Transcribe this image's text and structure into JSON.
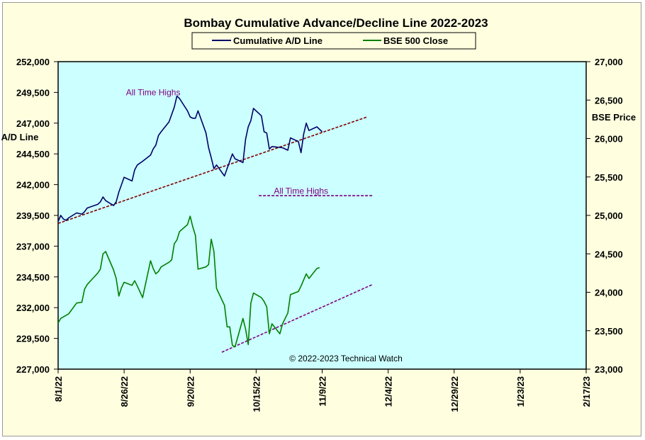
{
  "chart_data": {
    "type": "line",
    "title": "Bombay Cumulative Advance/Decline Line 2022-2023",
    "copyright": "© 2022-2023  Technical Watch",
    "left_axis_label": [
      "A/D Line"
    ],
    "right_axis_label": "BSE Price",
    "annotations": [
      "All Time Highs",
      "All Time Highs"
    ],
    "legend": {
      "placement": "top-center",
      "entries": [
        {
          "name": "Cumulative A/D Line",
          "color": "#000066"
        },
        {
          "name": "BSE 500 Close",
          "color": "#008000"
        }
      ]
    },
    "x_axis": {
      "type": "date",
      "range": [
        "2022-08-01",
        "2023-02-17"
      ],
      "tick_labels": [
        "8/1/22",
        "8/26/22",
        "9/20/22",
        "10/15/22",
        "11/9/22",
        "12/4/22",
        "12/29/22",
        "1/23/23",
        "2/17/23"
      ]
    },
    "y_left": {
      "range": [
        227000,
        252000
      ],
      "tick_labels": [
        "252,000",
        "249,500",
        "247,000",
        "244,500",
        "242,000",
        "239,500",
        "237,000",
        "234,500",
        "232,000",
        "229,500",
        "227,000"
      ]
    },
    "y_right": {
      "range": [
        23000,
        27000
      ],
      "tick_labels": [
        "27,000",
        "26,500",
        "26,000",
        "25,500",
        "25,000",
        "24,500",
        "24,000",
        "23,500",
        "23,000"
      ]
    },
    "grid": false,
    "background_color": "#ccffff",
    "series": [
      {
        "name": "Cumulative A/D Line",
        "axis": "left",
        "color": "#000066",
        "points": [
          [
            "2022-08-01",
            239000
          ],
          [
            "2022-08-02",
            239500
          ],
          [
            "2022-08-03",
            239200
          ],
          [
            "2022-08-04",
            239100
          ],
          [
            "2022-08-05",
            239300
          ],
          [
            "2022-08-08",
            239700
          ],
          [
            "2022-08-10",
            239600
          ],
          [
            "2022-08-11",
            239800
          ],
          [
            "2022-08-12",
            240100
          ],
          [
            "2022-08-16",
            240400
          ],
          [
            "2022-08-17",
            240600
          ],
          [
            "2022-08-18",
            241000
          ],
          [
            "2022-08-19",
            240700
          ],
          [
            "2022-08-22",
            240300
          ],
          [
            "2022-08-23",
            240600
          ],
          [
            "2022-08-24",
            241400
          ],
          [
            "2022-08-25",
            242000
          ],
          [
            "2022-08-26",
            242600
          ],
          [
            "2022-08-29",
            242300
          ],
          [
            "2022-08-30",
            243200
          ],
          [
            "2022-08-31",
            243600
          ],
          [
            "2022-09-02",
            243900
          ],
          [
            "2022-09-05",
            244400
          ],
          [
            "2022-09-06",
            244900
          ],
          [
            "2022-09-07",
            245200
          ],
          [
            "2022-09-08",
            246000
          ],
          [
            "2022-09-09",
            246300
          ],
          [
            "2022-09-12",
            247100
          ],
          [
            "2022-09-13",
            247700
          ],
          [
            "2022-09-14",
            248300
          ],
          [
            "2022-09-15",
            249200
          ],
          [
            "2022-09-16",
            249000
          ],
          [
            "2022-09-19",
            248000
          ],
          [
            "2022-09-20",
            247500
          ],
          [
            "2022-09-21",
            247400
          ],
          [
            "2022-09-22",
            247400
          ],
          [
            "2022-09-23",
            248000
          ],
          [
            "2022-09-26",
            246200
          ],
          [
            "2022-09-27",
            245000
          ],
          [
            "2022-09-28",
            244200
          ],
          [
            "2022-09-29",
            243300
          ],
          [
            "2022-09-30",
            243600
          ],
          [
            "2022-10-03",
            242700
          ],
          [
            "2022-10-04",
            243300
          ],
          [
            "2022-10-06",
            244500
          ],
          [
            "2022-10-07",
            244100
          ],
          [
            "2022-10-10",
            243800
          ],
          [
            "2022-10-11",
            245700
          ],
          [
            "2022-10-12",
            246700
          ],
          [
            "2022-10-13",
            247200
          ],
          [
            "2022-10-14",
            248200
          ],
          [
            "2022-10-17",
            247600
          ],
          [
            "2022-10-18",
            246300
          ],
          [
            "2022-10-19",
            246200
          ],
          [
            "2022-10-20",
            244900
          ],
          [
            "2022-10-21",
            245100
          ],
          [
            "2022-10-25",
            245000
          ],
          [
            "2022-10-27",
            244800
          ],
          [
            "2022-10-28",
            245800
          ],
          [
            "2022-10-31",
            245500
          ],
          [
            "2022-11-01",
            244600
          ],
          [
            "2022-11-02",
            246100
          ],
          [
            "2022-11-03",
            247000
          ],
          [
            "2022-11-04",
            246400
          ],
          [
            "2022-11-07",
            246700
          ],
          [
            "2022-11-09",
            246300
          ]
        ]
      },
      {
        "name": "BSE 500 Close",
        "axis": "right",
        "color": "#008000",
        "points": [
          [
            "2022-08-01",
            23600
          ],
          [
            "2022-08-02",
            23660
          ],
          [
            "2022-08-03",
            23680
          ],
          [
            "2022-08-04",
            23700
          ],
          [
            "2022-08-05",
            23720
          ],
          [
            "2022-08-08",
            23860
          ],
          [
            "2022-08-10",
            23870
          ],
          [
            "2022-08-11",
            24040
          ],
          [
            "2022-08-12",
            24100
          ],
          [
            "2022-08-16",
            24250
          ],
          [
            "2022-08-17",
            24300
          ],
          [
            "2022-08-18",
            24500
          ],
          [
            "2022-08-19",
            24530
          ],
          [
            "2022-08-22",
            24290
          ],
          [
            "2022-08-23",
            24180
          ],
          [
            "2022-08-24",
            23950
          ],
          [
            "2022-08-25",
            24060
          ],
          [
            "2022-08-26",
            24130
          ],
          [
            "2022-08-29",
            24090
          ],
          [
            "2022-08-30",
            24150
          ],
          [
            "2022-08-31",
            24080
          ],
          [
            "2022-09-02",
            23930
          ],
          [
            "2022-09-05",
            24410
          ],
          [
            "2022-09-06",
            24310
          ],
          [
            "2022-09-07",
            24240
          ],
          [
            "2022-09-08",
            24270
          ],
          [
            "2022-09-09",
            24330
          ],
          [
            "2022-09-12",
            24390
          ],
          [
            "2022-09-13",
            24420
          ],
          [
            "2022-09-14",
            24630
          ],
          [
            "2022-09-15",
            24680
          ],
          [
            "2022-09-16",
            24790
          ],
          [
            "2022-09-19",
            24880
          ],
          [
            "2022-09-20",
            24990
          ],
          [
            "2022-09-21",
            24850
          ],
          [
            "2022-09-22",
            24740
          ],
          [
            "2022-09-23",
            24300
          ],
          [
            "2022-09-26",
            24330
          ],
          [
            "2022-09-27",
            24360
          ],
          [
            "2022-09-28",
            24690
          ],
          [
            "2022-09-29",
            24530
          ],
          [
            "2022-09-30",
            24050
          ],
          [
            "2022-10-03",
            23830
          ],
          [
            "2022-10-04",
            23550
          ],
          [
            "2022-10-05",
            23550
          ],
          [
            "2022-10-06",
            23310
          ],
          [
            "2022-10-07",
            23290
          ],
          [
            "2022-10-10",
            23660
          ],
          [
            "2022-10-11",
            23520
          ],
          [
            "2022-10-12",
            23320
          ],
          [
            "2022-10-13",
            23860
          ],
          [
            "2022-10-14",
            23990
          ],
          [
            "2022-10-17",
            23930
          ],
          [
            "2022-10-18",
            23880
          ],
          [
            "2022-10-19",
            23810
          ],
          [
            "2022-10-20",
            23460
          ],
          [
            "2022-10-21",
            23590
          ],
          [
            "2022-10-24",
            23460
          ],
          [
            "2022-10-25",
            23590
          ],
          [
            "2022-10-27",
            23730
          ],
          [
            "2022-10-28",
            23970
          ],
          [
            "2022-10-31",
            24010
          ],
          [
            "2022-11-01",
            24080
          ],
          [
            "2022-11-02",
            24160
          ],
          [
            "2022-11-03",
            24240
          ],
          [
            "2022-11-04",
            24180
          ],
          [
            "2022-11-07",
            24310
          ],
          [
            "2022-11-08",
            24320
          ]
        ]
      }
    ],
    "trend_lines": [
      {
        "axis": "left",
        "color": "#800000",
        "style": "dashed",
        "from": [
          "2022-08-01",
          238850
        ],
        "to": [
          "2022-11-26",
          247500
        ]
      },
      {
        "axis": "right",
        "color": "#800080",
        "style": "dashed",
        "from": [
          "2022-10-02",
          23220
        ],
        "to": [
          "2022-11-28",
          24100
        ]
      },
      {
        "axis": "left",
        "color": "#800080",
        "style": "dashed",
        "label": "All Time Highs",
        "from": [
          "2022-10-16",
          241100
        ],
        "to": [
          "2022-11-28",
          241100
        ]
      }
    ],
    "annotation_points": [
      {
        "text_index": 0,
        "axis": "left",
        "x": "2022-09-06",
        "y": 249500
      },
      {
        "text_index": 1,
        "axis": "left",
        "x": "2022-11-01",
        "y": 241500
      }
    ]
  }
}
